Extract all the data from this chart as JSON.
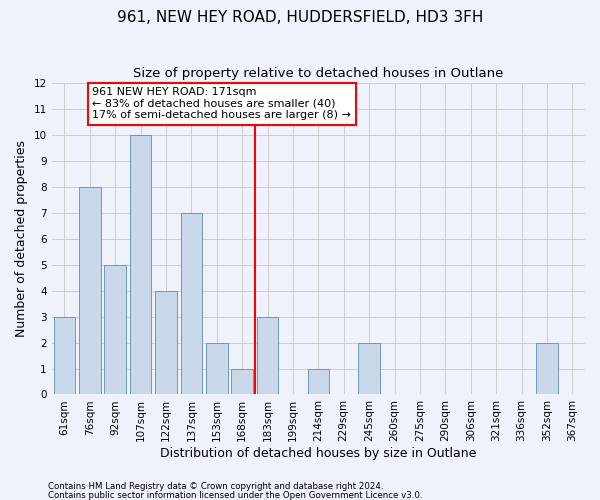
{
  "title": "961, NEW HEY ROAD, HUDDERSFIELD, HD3 3FH",
  "subtitle": "Size of property relative to detached houses in Outlane",
  "xlabel": "Distribution of detached houses by size in Outlane",
  "ylabel": "Number of detached properties",
  "categories": [
    "61sqm",
    "76sqm",
    "92sqm",
    "107sqm",
    "122sqm",
    "137sqm",
    "153sqm",
    "168sqm",
    "183sqm",
    "199sqm",
    "214sqm",
    "229sqm",
    "245sqm",
    "260sqm",
    "275sqm",
    "290sqm",
    "306sqm",
    "321sqm",
    "336sqm",
    "352sqm",
    "367sqm"
  ],
  "values": [
    3,
    8,
    5,
    10,
    4,
    7,
    2,
    1,
    3,
    0,
    1,
    0,
    2,
    0,
    0,
    0,
    0,
    0,
    0,
    2,
    0
  ],
  "bar_color": "#c8d8e8",
  "bar_edge_color": "#7098b8",
  "grid_color": "#cccccc",
  "background_color": "#eef2fa",
  "red_line_x": 7.5,
  "annotation_text": "961 NEW HEY ROAD: 171sqm\n← 83% of detached houses are smaller (40)\n17% of semi-detached houses are larger (8) →",
  "annotation_box_color": "white",
  "annotation_box_edge_color": "red",
  "red_line_color": "red",
  "ylim": [
    0,
    12
  ],
  "yticks": [
    0,
    1,
    2,
    3,
    4,
    5,
    6,
    7,
    8,
    9,
    10,
    11,
    12
  ],
  "footer1": "Contains HM Land Registry data © Crown copyright and database right 2024.",
  "footer2": "Contains public sector information licensed under the Open Government Licence v3.0.",
  "title_fontsize": 11,
  "subtitle_fontsize": 9.5,
  "tick_fontsize": 7.5,
  "ylabel_fontsize": 9,
  "xlabel_fontsize": 9,
  "annotation_fontsize": 8
}
